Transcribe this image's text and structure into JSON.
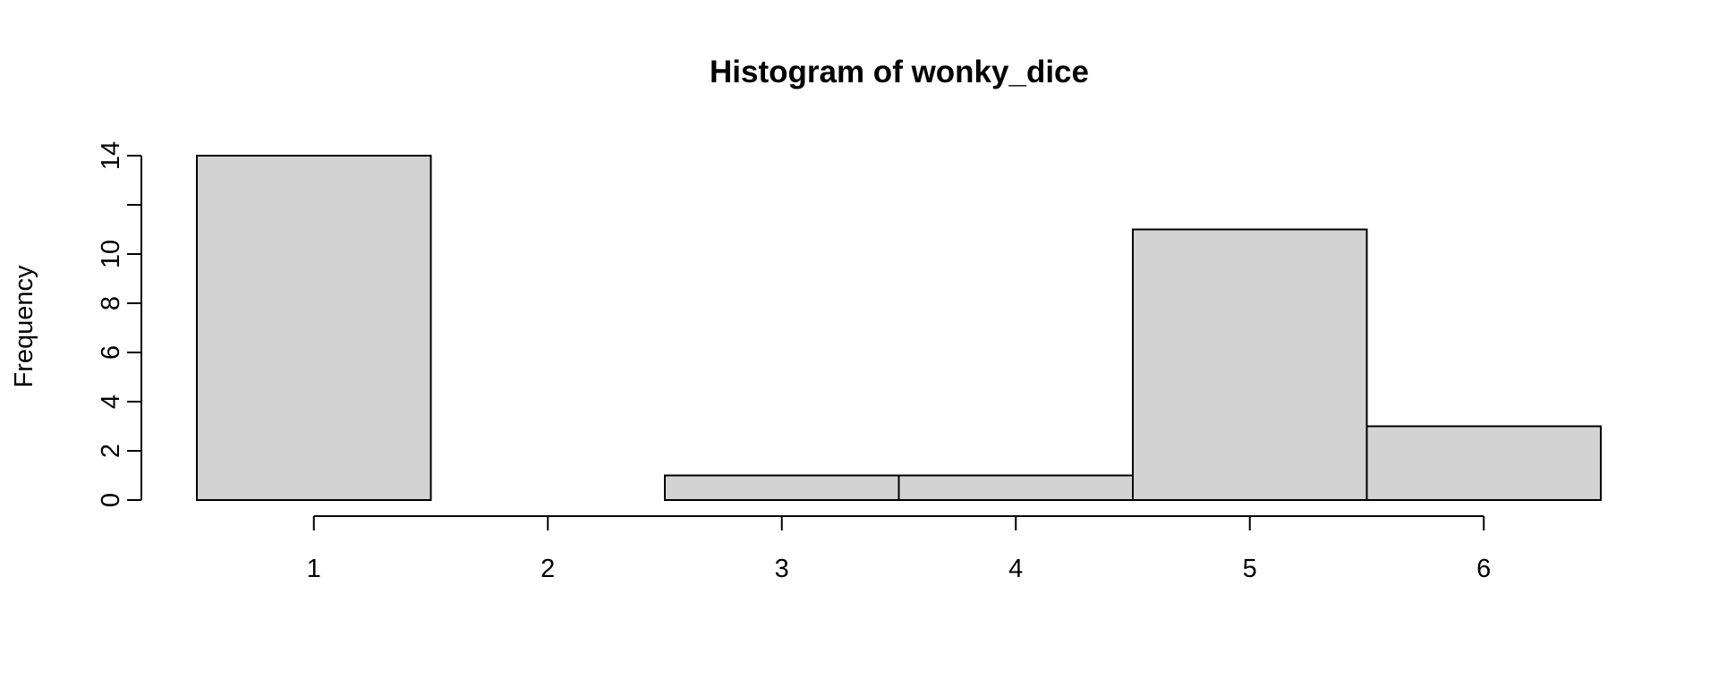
{
  "chart_data": {
    "type": "bar",
    "title": "Histogram of wonky_dice",
    "xlabel": "",
    "ylabel": "Frequency",
    "categories": [
      "1",
      "2",
      "3",
      "4",
      "5",
      "6"
    ],
    "bins": [
      {
        "from": 0.5,
        "to": 1.5,
        "count": 14
      },
      {
        "from": 1.5,
        "to": 2.5,
        "count": 0
      },
      {
        "from": 2.5,
        "to": 3.5,
        "count": 1
      },
      {
        "from": 3.5,
        "to": 4.5,
        "count": 1
      },
      {
        "from": 4.5,
        "to": 5.5,
        "count": 11
      },
      {
        "from": 5.5,
        "to": 6.5,
        "count": 3
      }
    ],
    "x_ticks": [
      1,
      2,
      3,
      4,
      5,
      6
    ],
    "y_ticks": [
      0,
      2,
      4,
      6,
      8,
      10,
      12,
      14
    ],
    "y_tick_labels": [
      "0",
      "2",
      "4",
      "6",
      "8",
      "10",
      "",
      "14"
    ],
    "xlim": [
      0.5,
      6.5
    ],
    "ylim": [
      0,
      14
    ],
    "grid": false,
    "legend": "none",
    "bar_fill": "#d3d3d3",
    "bar_stroke": "#000000"
  }
}
